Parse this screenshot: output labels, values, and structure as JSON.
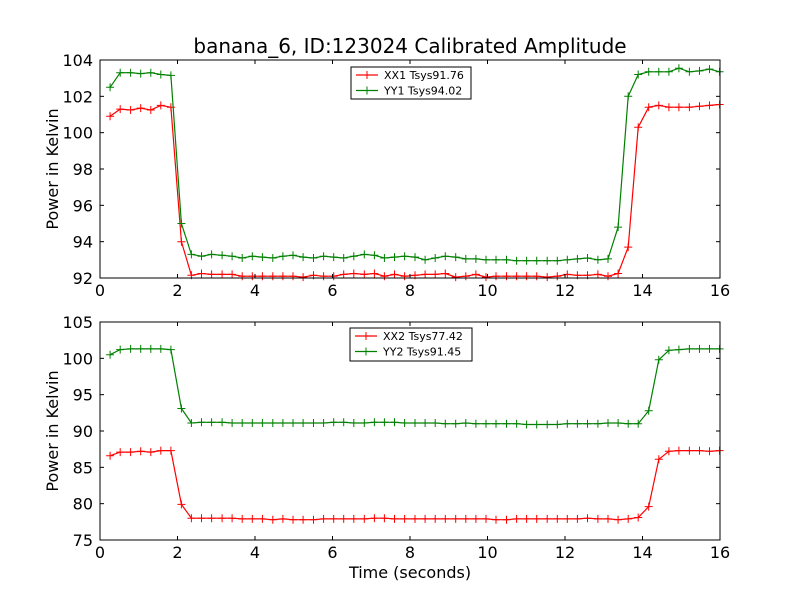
{
  "chart_data": [
    {
      "type": "line",
      "title": "banana_6, ID:123024 Calibrated Amplitude",
      "xlabel": "",
      "ylabel": "Power in Kelvin",
      "xlim": [
        0,
        16
      ],
      "ylim": [
        92,
        104
      ],
      "xticks": [
        0,
        2,
        4,
        6,
        8,
        10,
        12,
        14,
        16
      ],
      "yticks": [
        92,
        94,
        96,
        98,
        100,
        102,
        104
      ],
      "legend_position": "top-center",
      "x": [
        0.26,
        0.52,
        0.79,
        1.05,
        1.31,
        1.57,
        1.83,
        2.1,
        2.36,
        2.62,
        2.88,
        3.15,
        3.41,
        3.67,
        3.93,
        4.19,
        4.46,
        4.72,
        4.98,
        5.24,
        5.51,
        5.77,
        6.03,
        6.29,
        6.55,
        6.82,
        7.08,
        7.34,
        7.6,
        7.86,
        8.13,
        8.39,
        8.65,
        8.91,
        9.18,
        9.44,
        9.7,
        9.96,
        10.22,
        10.49,
        10.75,
        11.01,
        11.27,
        11.54,
        11.8,
        12.06,
        12.32,
        12.58,
        12.85,
        13.11,
        13.37,
        13.63,
        13.89,
        14.16,
        14.42,
        14.68,
        14.94,
        15.21,
        15.47,
        15.73,
        15.99
      ],
      "series": [
        {
          "name": "XX1 Tsys91.76",
          "color": "#ff0000",
          "values": [
            100.9,
            101.3,
            101.25,
            101.35,
            101.25,
            101.5,
            101.4,
            94.0,
            92.15,
            92.25,
            92.2,
            92.2,
            92.2,
            92.1,
            92.1,
            92.1,
            92.1,
            92.1,
            92.1,
            92.05,
            92.15,
            92.1,
            92.1,
            92.2,
            92.25,
            92.2,
            92.25,
            92.1,
            92.2,
            92.1,
            92.15,
            92.2,
            92.2,
            92.25,
            92.05,
            92.1,
            92.2,
            92.05,
            92.1,
            92.1,
            92.1,
            92.1,
            92.1,
            92.05,
            92.1,
            92.2,
            92.15,
            92.15,
            92.2,
            92.1,
            92.25,
            93.7,
            100.3,
            101.4,
            101.5,
            101.4,
            101.4,
            101.4,
            101.45,
            101.5,
            101.55
          ]
        },
        {
          "name": "YY1 Tsys94.02",
          "color": "#008000",
          "values": [
            102.5,
            103.3,
            103.3,
            103.25,
            103.3,
            103.2,
            103.15,
            95.0,
            93.3,
            93.2,
            93.3,
            93.25,
            93.2,
            93.1,
            93.2,
            93.15,
            93.1,
            93.2,
            93.25,
            93.15,
            93.1,
            93.2,
            93.15,
            93.1,
            93.2,
            93.3,
            93.25,
            93.1,
            93.15,
            93.2,
            93.15,
            93.0,
            93.1,
            93.2,
            93.15,
            93.05,
            93.05,
            93.0,
            93.0,
            93.0,
            92.95,
            92.95,
            92.95,
            92.95,
            92.95,
            93.0,
            93.05,
            93.1,
            93.0,
            93.05,
            94.8,
            102.0,
            103.2,
            103.35,
            103.35,
            103.35,
            103.55,
            103.35,
            103.4,
            103.5,
            103.35
          ]
        }
      ]
    },
    {
      "type": "line",
      "title": "",
      "xlabel": "Time (seconds)",
      "ylabel": "Power in Kelvin",
      "xlim": [
        0,
        16
      ],
      "ylim": [
        75,
        105
      ],
      "xticks": [
        0,
        2,
        4,
        6,
        8,
        10,
        12,
        14,
        16
      ],
      "yticks": [
        75,
        80,
        85,
        90,
        95,
        100,
        105
      ],
      "legend_position": "top-center",
      "x": [
        0.26,
        0.52,
        0.79,
        1.05,
        1.31,
        1.57,
        1.83,
        2.1,
        2.36,
        2.62,
        2.88,
        3.15,
        3.41,
        3.67,
        3.93,
        4.19,
        4.46,
        4.72,
        4.98,
        5.24,
        5.51,
        5.77,
        6.03,
        6.29,
        6.55,
        6.82,
        7.08,
        7.34,
        7.6,
        7.86,
        8.13,
        8.39,
        8.65,
        8.91,
        9.18,
        9.44,
        9.7,
        9.96,
        10.22,
        10.49,
        10.75,
        11.01,
        11.27,
        11.54,
        11.8,
        12.06,
        12.32,
        12.58,
        12.85,
        13.11,
        13.37,
        13.63,
        13.89,
        14.16,
        14.42,
        14.68,
        14.94,
        15.21,
        15.47,
        15.73,
        15.99
      ],
      "series": [
        {
          "name": "XX2 Tsys77.42",
          "color": "#ff0000",
          "values": [
            86.6,
            87.1,
            87.1,
            87.2,
            87.1,
            87.3,
            87.3,
            79.9,
            78.0,
            78.0,
            78.0,
            78.0,
            78.0,
            77.9,
            77.9,
            77.9,
            77.8,
            77.9,
            77.8,
            77.8,
            77.8,
            77.9,
            77.9,
            77.9,
            77.9,
            77.9,
            78.0,
            78.0,
            77.9,
            77.9,
            77.9,
            77.9,
            77.9,
            77.9,
            77.9,
            77.9,
            77.9,
            77.9,
            77.8,
            77.8,
            77.9,
            77.9,
            77.9,
            77.9,
            77.9,
            77.9,
            77.9,
            78.0,
            77.9,
            77.9,
            77.8,
            77.9,
            78.1,
            79.6,
            86.1,
            87.2,
            87.3,
            87.3,
            87.3,
            87.2,
            87.3
          ]
        },
        {
          "name": "YY2 Tsys91.45",
          "color": "#008000",
          "values": [
            100.5,
            101.2,
            101.3,
            101.3,
            101.3,
            101.3,
            101.2,
            93.1,
            91.1,
            91.2,
            91.2,
            91.2,
            91.1,
            91.1,
            91.1,
            91.1,
            91.1,
            91.1,
            91.1,
            91.1,
            91.1,
            91.1,
            91.2,
            91.2,
            91.1,
            91.1,
            91.2,
            91.2,
            91.2,
            91.1,
            91.1,
            91.1,
            91.1,
            91.0,
            91.0,
            91.1,
            91.0,
            91.0,
            91.0,
            91.0,
            91.0,
            90.9,
            90.9,
            90.9,
            90.9,
            91.0,
            91.0,
            91.0,
            91.0,
            91.1,
            91.1,
            91.0,
            91.0,
            92.8,
            99.8,
            101.1,
            101.2,
            101.3,
            101.3,
            101.3,
            101.3
          ]
        }
      ]
    }
  ]
}
